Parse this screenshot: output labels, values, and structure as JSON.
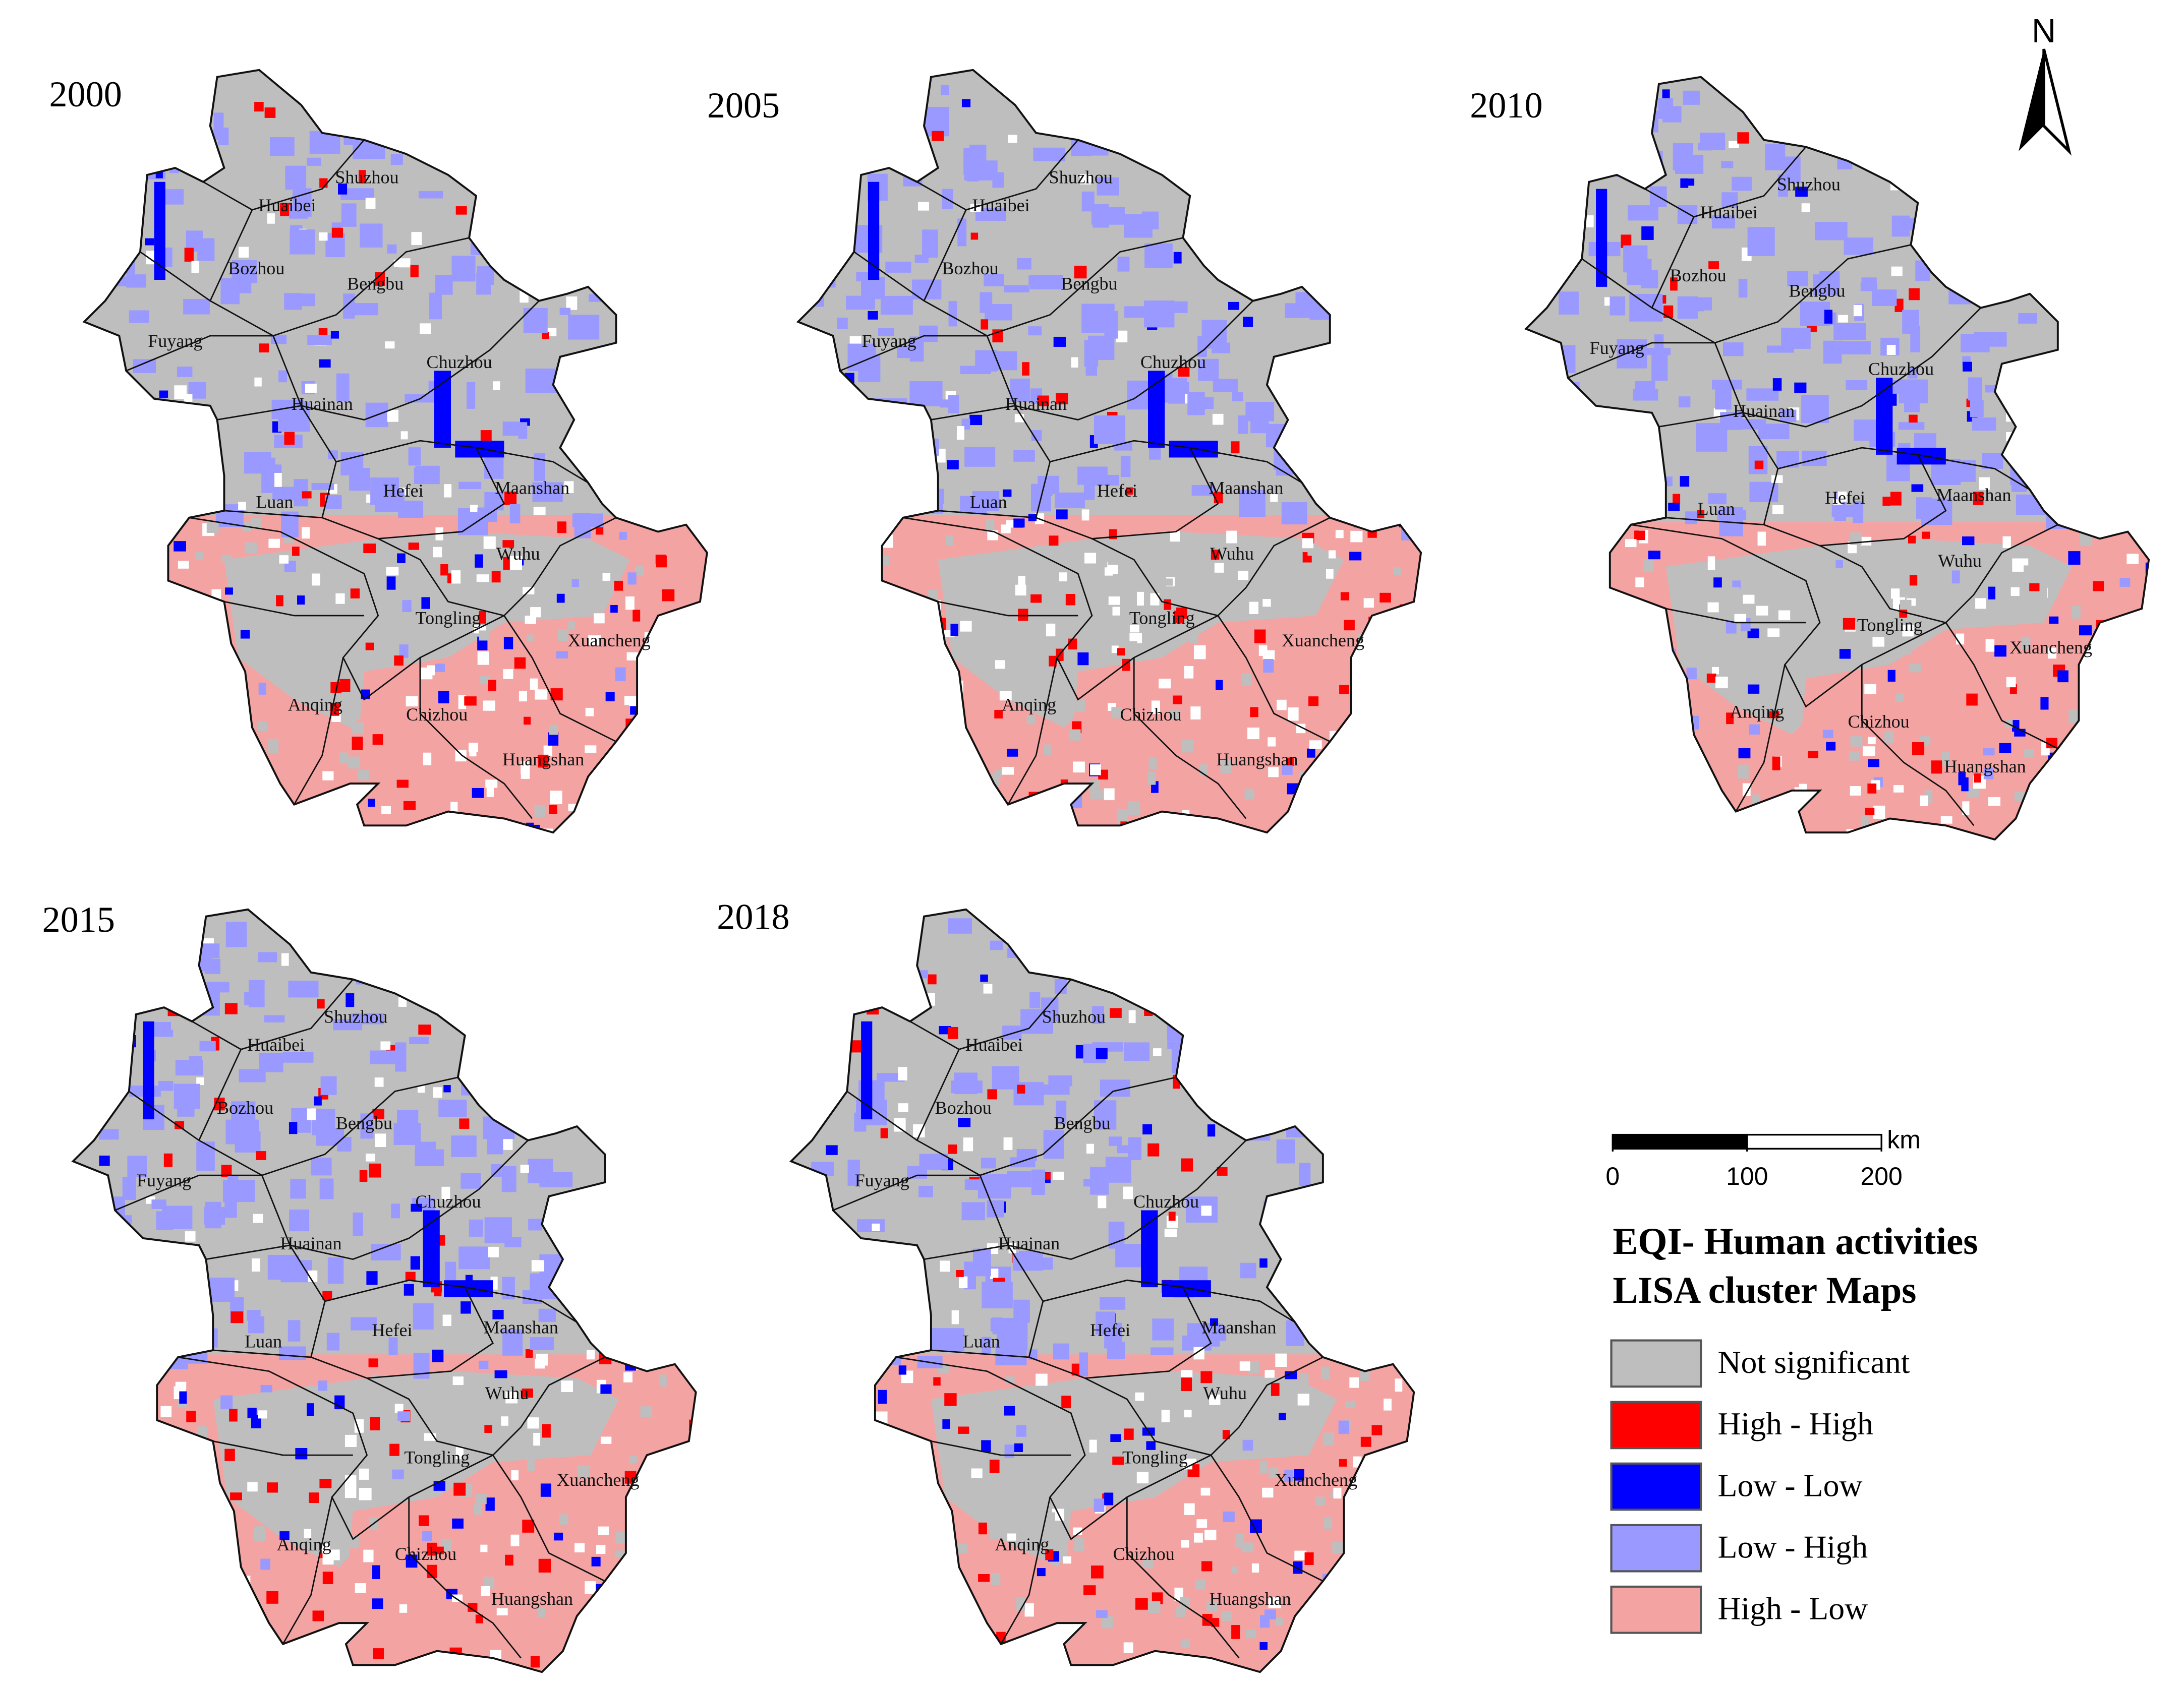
{
  "maps": [
    {
      "year": "2000"
    },
    {
      "year": "2005"
    },
    {
      "year": "2010"
    },
    {
      "year": "2015"
    },
    {
      "year": "2018"
    }
  ],
  "cities": [
    "Shuzhou",
    "Huaibei",
    "Bozhou",
    "Bengbu",
    "Fuyang",
    "Chuzhou",
    "Huainan",
    "Luan",
    "Hefei",
    "Maanshan",
    "Wuhu",
    "Tongling",
    "Xuancheng",
    "Anqing",
    "Chizhou",
    "Huangshan"
  ],
  "north_arrow": "N",
  "scale_bar": {
    "unit": "km",
    "ticks": [
      0,
      100,
      200
    ]
  },
  "legend": {
    "title": [
      "EQI- Human activities",
      "LISA cluster Maps"
    ],
    "items": [
      {
        "label": "Not significant",
        "color": "#bebebe"
      },
      {
        "label": "High - High",
        "color": "#ff0000"
      },
      {
        "label": "Low - Low",
        "color": "#0000ff"
      },
      {
        "label": "Low - High",
        "color": "#9999ff"
      },
      {
        "label": "High - Low",
        "color": "#f4a3a3"
      }
    ]
  }
}
